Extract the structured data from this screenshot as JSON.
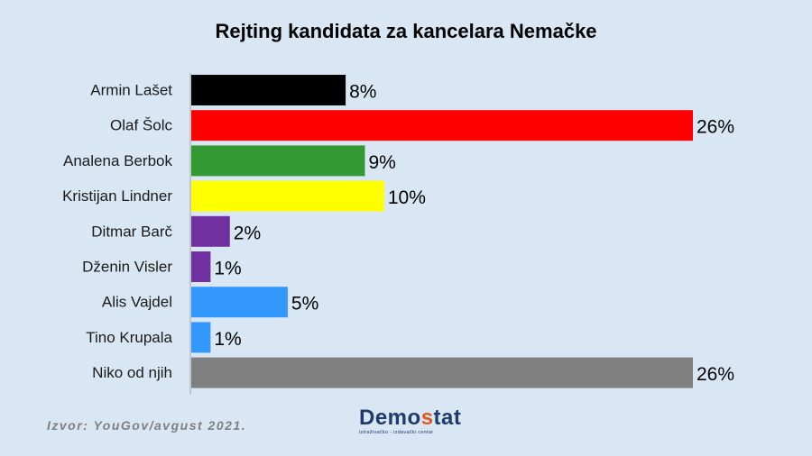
{
  "chart_data": {
    "type": "bar",
    "orientation": "horizontal",
    "title": "Rejting kandidata za kancelara Nemačke",
    "categories": [
      "Armin Lašet",
      "Olaf Šolc",
      "Analena Berbok",
      "Kristijan Lindner",
      "Ditmar Barč",
      "Dženin Visler",
      "Alis Vajdel",
      "Tino Krupala",
      "Niko od njih"
    ],
    "values": [
      8,
      26,
      9,
      10,
      2,
      1,
      5,
      1,
      26
    ],
    "value_labels": [
      "8%",
      "26%",
      "9%",
      "10%",
      "2%",
      "1%",
      "5%",
      "1%",
      "26%"
    ],
    "colors": [
      "#000000",
      "#ff0000",
      "#339933",
      "#ffff00",
      "#7030a0",
      "#7030a0",
      "#3399ff",
      "#3399ff",
      "#808080"
    ],
    "xlim": [
      0,
      26
    ],
    "grid": false
  },
  "source_text": "Izvor: YouGov/avgust 2021.",
  "logo": {
    "name_start": "Demo",
    "name_accent": "s",
    "name_end": "tat",
    "tagline": "istraživačko - izdavački centar"
  }
}
